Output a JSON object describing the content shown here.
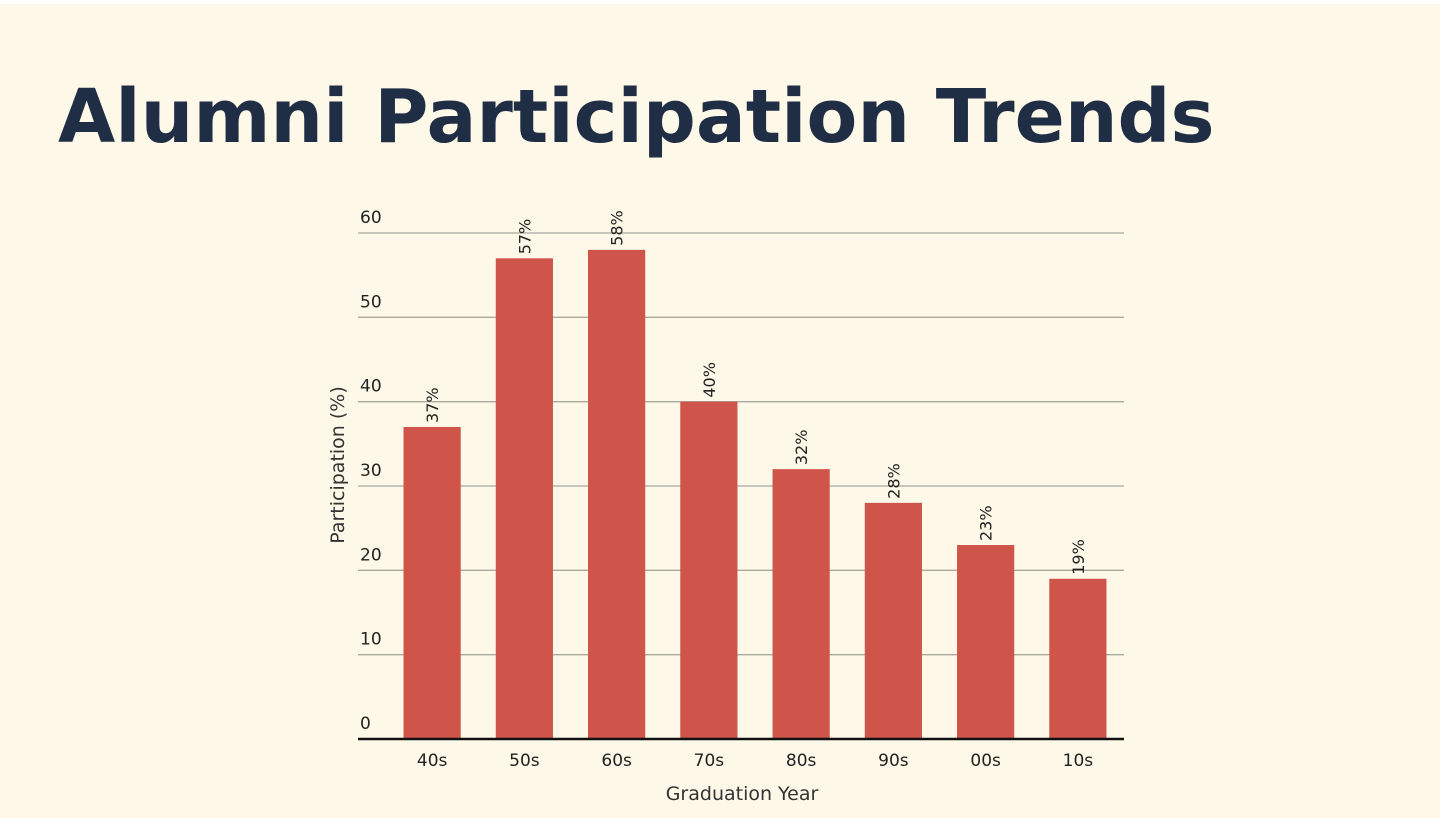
{
  "chart_data": {
    "type": "bar",
    "title": "Alumni Participation Trends",
    "x_label": "Graduation Year",
    "y_label": "Participation (%)",
    "categories": [
      "40s",
      "50s",
      "60s",
      "70s",
      "80s",
      "90s",
      "00s",
      "10s"
    ],
    "values": [
      37,
      57,
      58,
      40,
      32,
      28,
      23,
      19
    ],
    "value_labels": [
      "37%",
      "57%",
      "58%",
      "40%",
      "32%",
      "28%",
      "23%",
      "19%"
    ],
    "color": "#cf5449",
    "ylim": [
      0,
      60
    ],
    "yticks": [
      0,
      10,
      20,
      30,
      40,
      50,
      60
    ],
    "grid": true
  }
}
